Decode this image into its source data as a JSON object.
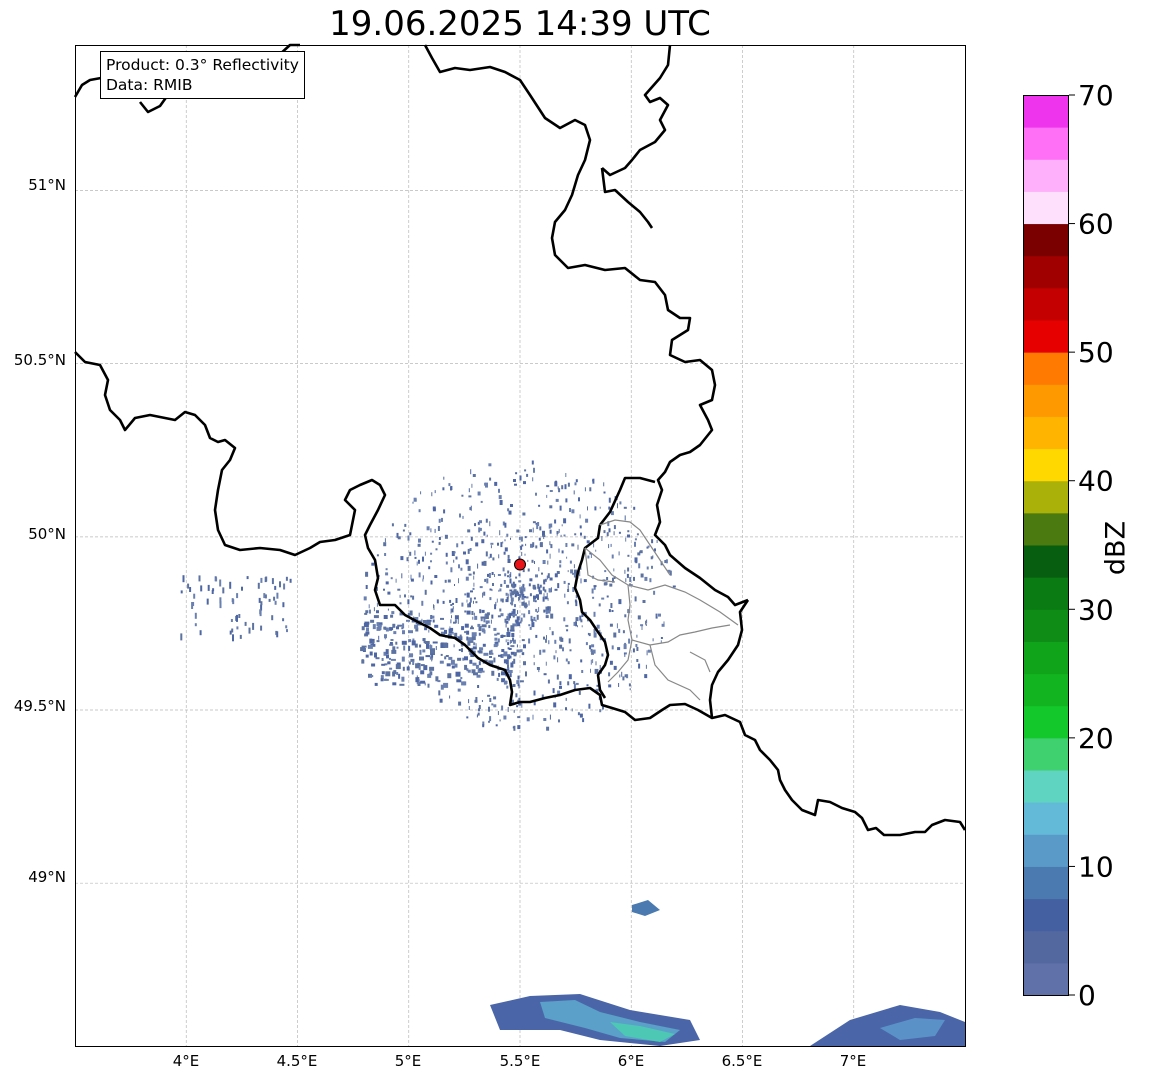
{
  "title": "19.06.2025 14:39 UTC",
  "info": {
    "product_line": "Product: 0.3° Reflectivity",
    "data_line": "Data: RMIB"
  },
  "axes": {
    "lat_labels": [
      "51°N",
      "50.5°N",
      "50°N",
      "49.5°N",
      "49°N"
    ],
    "lon_labels": [
      "4°E",
      "4.5°E",
      "5°E",
      "5.5°E",
      "6°E",
      "6.5°E",
      "7°E"
    ],
    "lat_range": [
      48.53,
      51.42
    ],
    "lon_range": [
      3.5,
      7.5
    ],
    "grid": true
  },
  "radar_site": {
    "lon": 5.5,
    "lat": 49.92,
    "marker_color": "#e8141a"
  },
  "colorbar": {
    "label": "dBZ",
    "min": 0,
    "max": 70,
    "step": 2.5,
    "tick_labels": [
      "0",
      "10",
      "20",
      "30",
      "40",
      "50",
      "60",
      "70"
    ],
    "colors": [
      "#6070a8",
      "#5468a0",
      "#4560a0",
      "#4a7ab0",
      "#5a9ac8",
      "#62bad8",
      "#5fd4c0",
      "#3fd070",
      "#12c82a",
      "#12b420",
      "#10a41a",
      "#0e8c16",
      "#0a7a12",
      "#085e10",
      "#4a7a10",
      "#aab20a",
      "#ffd800",
      "#ffb500",
      "#ff9900",
      "#ff7a00",
      "#e60000",
      "#c40000",
      "#a00000",
      "#7a0000",
      "#ffe0fc",
      "#ffb0fa",
      "#ff70f6",
      "#ee34ec"
    ]
  },
  "colors": {
    "border": "#000000",
    "province": "#808080",
    "grid": "#b8b8b8",
    "echo": "#5c72a0"
  }
}
